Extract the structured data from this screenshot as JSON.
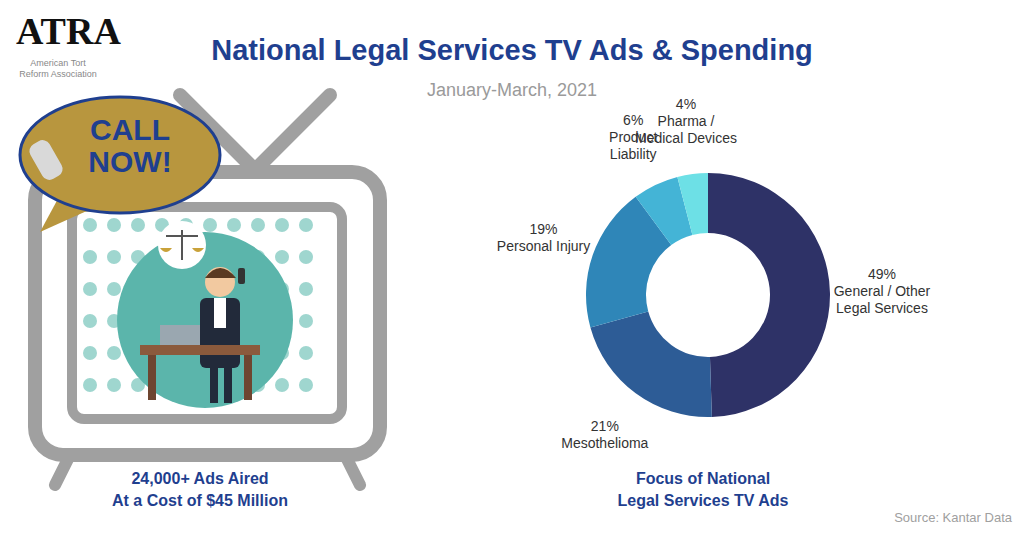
{
  "chart_data": {
    "type": "pie",
    "title": "National Legal Services TV Ads & Spending",
    "subtitle": "January-March, 2021",
    "categories": [
      "General / Other Legal Services",
      "Mesothelioma",
      "Personal Injury",
      "Product Liability",
      "Pharma / Medical Devices"
    ],
    "values": [
      49,
      21,
      19,
      6,
      4
    ],
    "value_labels": [
      "49%",
      "21%",
      "19%",
      "6%",
      "4%"
    ],
    "colors": [
      "#2e3267",
      "#2d5c96",
      "#2f86b8",
      "#44b4d6",
      "#6de0e6"
    ],
    "data_labels": true,
    "annotations": [
      "Focus of National Legal Services TV Ads"
    ]
  },
  "header": {
    "logo": "ATRA",
    "organization": "American Tort Reform Association"
  },
  "callout": "CALL NOW!",
  "stats": [
    "24,000+ Ads Aired",
    "At a Cost of $45 Million"
  ],
  "source": "Source: Kantar Data"
}
